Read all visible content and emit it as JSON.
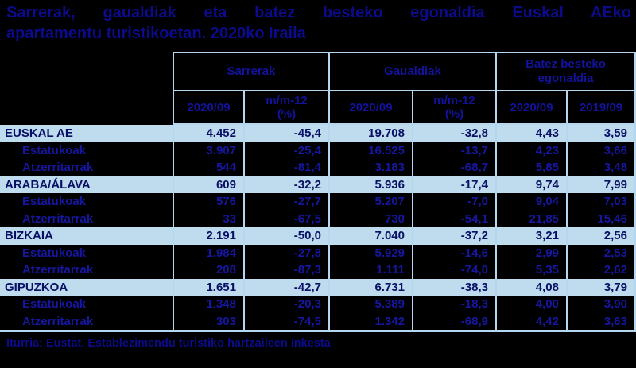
{
  "page": {
    "title_line1": "Sarrerak, gaualdiak eta batez besteko egonaldia Euskal AEko",
    "title_line2": "apartamentu turistikoetan. 2020ko Iraila",
    "source": "Iturria: Eustat. Establezimendu turistiko hartzaileen inkesta"
  },
  "colors": {
    "background": "#000000",
    "table_border": "#b5d6ef",
    "highlight_row": "#bfdbee",
    "text_navy": "#0b0b8b"
  },
  "chart_data": {
    "type": "table",
    "title": "Sarrerak, gaualdiak eta batez besteko egonaldia Euskal AEko apartamentu turistikoetan. 2020ko Iraila",
    "column_groups": [
      {
        "label": "Sarrerak"
      },
      {
        "label": "Gaualdiak"
      },
      {
        "label": "Batez besteko\negonaldia"
      }
    ],
    "columns": [
      "2020/09",
      "m/m-12\n(%)",
      "2020/09",
      "m/m-12\n(%)",
      "2020/09",
      "2019/09"
    ],
    "rows": [
      {
        "label": "EUSKAL AE",
        "level": "main",
        "values": [
          "4.452",
          "-45,4",
          "19.708",
          "-32,8",
          "4,43",
          "3,59"
        ]
      },
      {
        "label": "Estatukoak",
        "level": "sub",
        "values": [
          "3.907",
          "-25,4",
          "16.525",
          "-13,7",
          "4,23",
          "3,66"
        ]
      },
      {
        "label": "Atzerritarrak",
        "level": "sub",
        "values": [
          "544",
          "-81,4",
          "3.183",
          "-68,7",
          "5,85",
          "3,48"
        ]
      },
      {
        "label": "ARABA/ÁLAVA",
        "level": "main",
        "values": [
          "609",
          "-32,2",
          "5.936",
          "-17,4",
          "9,74",
          "7,99"
        ]
      },
      {
        "label": "Estatukoak",
        "level": "sub",
        "values": [
          "576",
          "-27,7",
          "5.207",
          "-7,0",
          "9,04",
          "7,03"
        ]
      },
      {
        "label": "Atzerritarrak",
        "level": "sub",
        "values": [
          "33",
          "-67,5",
          "730",
          "-54,1",
          "21,85",
          "15,46"
        ]
      },
      {
        "label": "BIZKAIA",
        "level": "main",
        "values": [
          "2.191",
          "-50,0",
          "7.040",
          "-37,2",
          "3,21",
          "2,56"
        ]
      },
      {
        "label": "Estatukoak",
        "level": "sub",
        "values": [
          "1.984",
          "-27,8",
          "5.929",
          "-14,6",
          "2,99",
          "2,53"
        ]
      },
      {
        "label": "Atzerritarrak",
        "level": "sub",
        "values": [
          "208",
          "-87,3",
          "1.111",
          "-74,0",
          "5,35",
          "2,62"
        ]
      },
      {
        "label": "GIPUZKOA",
        "level": "main",
        "values": [
          "1.651",
          "-42,7",
          "6.731",
          "-38,3",
          "4,08",
          "3,79"
        ]
      },
      {
        "label": "Estatukoak",
        "level": "sub",
        "values": [
          "1.348",
          "-20,3",
          "5.389",
          "-18,3",
          "4,00",
          "3,90"
        ]
      },
      {
        "label": "Atzerritarrak",
        "level": "sub",
        "values": [
          "303",
          "-74,5",
          "1.342",
          "-68,9",
          "4,42",
          "3,63"
        ]
      }
    ]
  }
}
